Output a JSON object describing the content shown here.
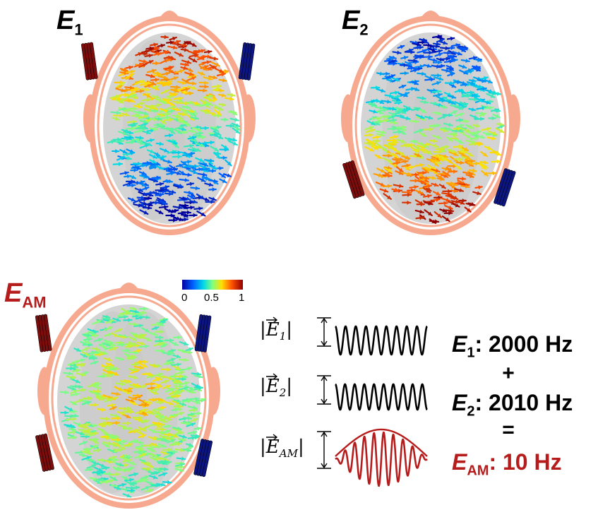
{
  "panels": {
    "e1": {
      "symbol": "E",
      "sub": "1"
    },
    "e2": {
      "symbol": "E",
      "sub": "2"
    },
    "eam": {
      "symbol": "E",
      "sub": "AM"
    }
  },
  "colorbar": {
    "ticks": [
      "0",
      "0.5",
      "1"
    ],
    "colors": [
      "#0000a0",
      "#0080ff",
      "#00e0e0",
      "#80ff80",
      "#ffe000",
      "#ff6000",
      "#a00000"
    ]
  },
  "waves": {
    "e1": {
      "symbol": "E",
      "sub": "1"
    },
    "e2": {
      "symbol": "E",
      "sub": "2"
    },
    "eam": {
      "symbol": "E",
      "sub": "AM"
    }
  },
  "equation": {
    "line1": {
      "symbol": "E",
      "sub": "1",
      "value": ": 2000 Hz"
    },
    "plus": "+",
    "line2": {
      "symbol": "E",
      "sub": "2",
      "value": ": 2010 Hz"
    },
    "equals": "=",
    "line3": {
      "symbol": "E",
      "sub": "AM",
      "value": ": 10 Hz"
    }
  },
  "colors": {
    "skin": "#f6a98f",
    "electrode_red": "#7b0d0d",
    "electrode_blue": "#0d1680",
    "accent_red": "#b71c1c"
  }
}
